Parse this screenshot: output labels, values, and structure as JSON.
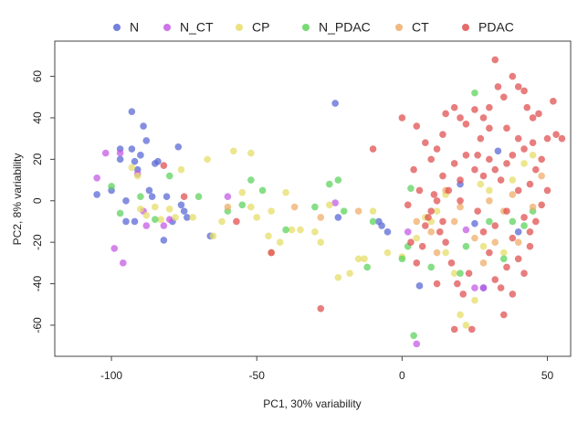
{
  "chart_data": {
    "type": "scatter",
    "xlabel": "PC1,  30% variability",
    "ylabel": "PC2,  8% variability",
    "xlim": [
      -119.5,
      58
    ],
    "ylim": [
      -75,
      77
    ],
    "xticks": [
      -100,
      -50,
      0,
      50
    ],
    "yticks": [
      -60,
      -40,
      -20,
      0,
      20,
      40,
      60
    ],
    "grid": false,
    "legend": "top",
    "series": [
      {
        "name": "N",
        "color": "#5b6ad6",
        "x": [
          -105,
          -100,
          -97,
          -95,
          -93,
          -93,
          -92,
          -91,
          -90,
          -89,
          -88,
          -87,
          -86,
          -85,
          -84,
          -82,
          -81,
          -79,
          -77,
          -76,
          -75,
          -74,
          -92,
          -66,
          -23,
          -22,
          -8,
          -5,
          -7,
          6,
          20,
          33,
          40,
          25,
          28,
          -97,
          -95
        ],
        "values": [
          3,
          5,
          25,
          0,
          43,
          25,
          19,
          15,
          22,
          36,
          29,
          5,
          2,
          18,
          19,
          -19,
          2,
          -10,
          26,
          -2,
          -5,
          -8,
          -10,
          -17,
          47,
          -8,
          -10,
          -15,
          -12,
          -41,
          8,
          24,
          -15,
          -11,
          -42,
          20,
          -10
        ]
      },
      {
        "name": "N_CT",
        "color": "#c45ce6",
        "x": [
          -105,
          -102,
          -99,
          -97,
          -96,
          -89,
          -88,
          -91,
          -82,
          -80,
          -60,
          5,
          25,
          28,
          22,
          2,
          -23
        ],
        "values": [
          11,
          23,
          -23,
          23,
          -30,
          -5,
          -12,
          13,
          -12,
          -9,
          2,
          -69,
          -42,
          -42,
          -14,
          -15,
          -1
        ]
      },
      {
        "name": "CP",
        "color": "#e6de6a",
        "x": [
          -93,
          -91,
          -90,
          -88,
          -85,
          -83,
          -80,
          -78,
          -76,
          -72,
          -67,
          -65,
          -62,
          -58,
          -55,
          -52,
          -52,
          -50,
          -46,
          -45,
          -42,
          -40,
          -38,
          -35,
          -30,
          -28,
          -25,
          -22,
          -18,
          -15,
          -13,
          -10,
          -5,
          0,
          5,
          8,
          10,
          12,
          15,
          18,
          20,
          22,
          25,
          28,
          30,
          35,
          38,
          42,
          45,
          27,
          15
        ],
        "values": [
          16,
          12,
          -4,
          -7,
          -3,
          -9,
          -4,
          -8,
          15,
          -8,
          20,
          -17,
          -10,
          24,
          4,
          23,
          -3,
          -8,
          -17,
          -5,
          -20,
          4,
          -14,
          -14,
          -15,
          -20,
          -2,
          -37,
          -35,
          -28,
          -28,
          -5,
          -25,
          -27,
          -18,
          -8,
          -10,
          -5,
          -25,
          -35,
          -55,
          -60,
          -48,
          -22,
          5,
          -25,
          10,
          18,
          22,
          8,
          3
        ]
      },
      {
        "name": "N_PDAC",
        "color": "#5fd35f",
        "x": [
          -100,
          -97,
          -90,
          -85,
          -80,
          -70,
          -60,
          -55,
          -52,
          -48,
          -40,
          -30,
          -25,
          -22,
          -20,
          -10,
          -12,
          0,
          2,
          3,
          4,
          10,
          20,
          25,
          22,
          30,
          35,
          38,
          42,
          45
        ],
        "values": [
          7,
          -6,
          2,
          -9,
          12,
          2,
          -5,
          -2,
          10,
          5,
          -14,
          -3,
          8,
          10,
          -5,
          -10,
          -32,
          -28,
          -22,
          6,
          -65,
          -32,
          -35,
          52,
          -22,
          -10,
          -28,
          -10,
          -12,
          -5
        ]
      },
      {
        "name": "CT",
        "color": "#efad6a",
        "x": [
          -60,
          -45,
          -37,
          -28,
          -15,
          5,
          10,
          12,
          15,
          18,
          20,
          25,
          28,
          32,
          35,
          38,
          40,
          45,
          48,
          30
        ],
        "values": [
          -3,
          -25,
          -3,
          -8,
          -5,
          -10,
          -15,
          -25,
          5,
          -10,
          -3,
          -18,
          -30,
          -20,
          -5,
          3,
          -20,
          -3,
          12,
          0
        ]
      },
      {
        "name": "PDAC",
        "color": "#e05252",
        "x": [
          0,
          5,
          8,
          10,
          12,
          14,
          15,
          18,
          20,
          22,
          25,
          27,
          28,
          30,
          32,
          33,
          35,
          36,
          38,
          40,
          42,
          43,
          45,
          47,
          50,
          52,
          53,
          55,
          48,
          45,
          42,
          40,
          38,
          36,
          34,
          32,
          30,
          28,
          25,
          22,
          20,
          18,
          16,
          14,
          12,
          10,
          8,
          6,
          4,
          2,
          3,
          5,
          7,
          9,
          11,
          13,
          15,
          17,
          19,
          21,
          23,
          26,
          28,
          30,
          32,
          34,
          36,
          38,
          40,
          42,
          44,
          46,
          48,
          50,
          44,
          40,
          36,
          32,
          24,
          18,
          35,
          38,
          42,
          44,
          46,
          30,
          26,
          20,
          14,
          12,
          -82,
          -75,
          -57,
          -45,
          -28,
          -10
        ],
        "values": [
          40,
          36,
          28,
          20,
          25,
          32,
          42,
          45,
          40,
          37,
          44,
          30,
          40,
          35,
          68,
          55,
          50,
          35,
          60,
          55,
          53,
          45,
          40,
          42,
          30,
          48,
          32,
          30,
          20,
          28,
          25,
          30,
          22,
          18,
          10,
          15,
          20,
          12,
          15,
          22,
          10,
          18,
          5,
          12,
          0,
          -5,
          -12,
          5,
          15,
          -2,
          -20,
          -30,
          -22,
          -8,
          3,
          -15,
          -20,
          -30,
          -40,
          -45,
          -35,
          -5,
          -15,
          -25,
          -38,
          -42,
          -32,
          -18,
          -28,
          -35,
          -22,
          -10,
          -2,
          5,
          8,
          5,
          -5,
          -12,
          -62,
          -62,
          -55,
          -45,
          -8,
          -15,
          15,
          45,
          22,
          0,
          -10,
          -40,
          17,
          2,
          -10,
          -25,
          -52,
          25
        ]
      }
    ]
  }
}
